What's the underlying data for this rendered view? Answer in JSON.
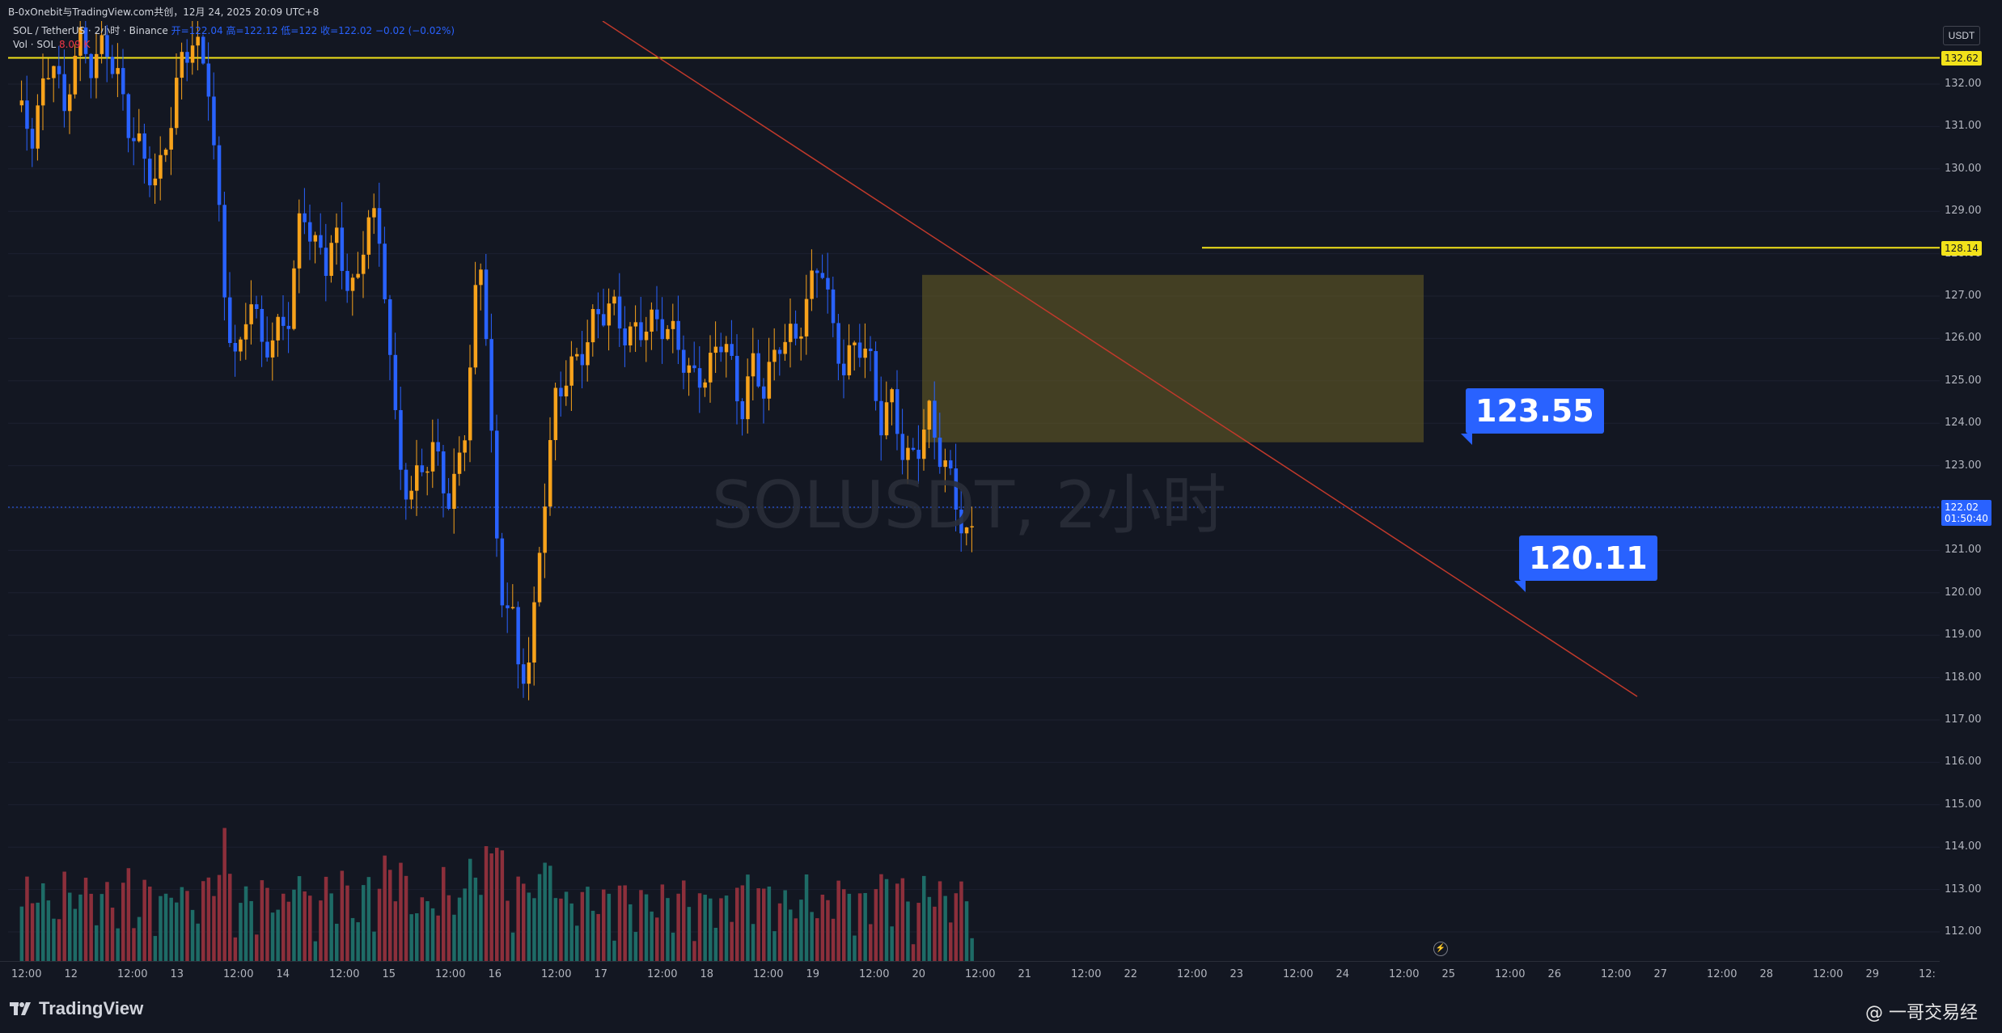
{
  "header": {
    "share_text": "B-0xOnebit与TradingView.com共创，12月 24, 2025 20:09 UTC+8"
  },
  "legend": {
    "symbol": "SOL / TetherUS · 2小时 · Binance",
    "ohlc": "开=122.04 高=122.12 低=122 收=122.02 −0.02 (−0.02%)",
    "vol_label": "Vol · SOL",
    "vol_value": "8.09 K"
  },
  "watermark": "SOLUSDT, 2小时",
  "currency_button": "USDT",
  "price_axis": [
    "132.00",
    "131.00",
    "130.00",
    "129.00",
    "128.00",
    "127.00",
    "126.00",
    "125.00",
    "124.00",
    "123.00",
    "122.00",
    "121.00",
    "120.00",
    "119.00",
    "118.00",
    "117.00",
    "116.00",
    "115.00",
    "114.00",
    "113.00",
    "112.00"
  ],
  "price_tags": {
    "upper_line": "132.62",
    "mid_line": "128.14",
    "current": "122.02",
    "countdown": "01:50:40"
  },
  "callouts": {
    "upper": "123.55",
    "lower": "120.11"
  },
  "time_axis": [
    "12:00",
    "12",
    "12:00",
    "13",
    "12:00",
    "14",
    "12:00",
    "15",
    "12:00",
    "16",
    "12:00",
    "17",
    "12:00",
    "18",
    "12:00",
    "19",
    "12:00",
    "20",
    "12:00",
    "21",
    "12:00",
    "22",
    "12:00",
    "23",
    "12:00",
    "24",
    "12:00",
    "25",
    "12:00",
    "26",
    "12:00",
    "27",
    "12:00",
    "28",
    "12:00",
    "29",
    "12:"
  ],
  "footer": {
    "brand": "TradingView",
    "credit": "@ 一哥交易经"
  },
  "colors": {
    "bull": "#f7a21b",
    "bear": "#2962ff",
    "vol_bull": "#1e6b66",
    "vol_bear": "#8c2f3b",
    "hline": "#f2e21a",
    "trendline": "#c0392b",
    "zone": "#6b6124"
  },
  "chart_data": {
    "type": "candlestick",
    "symbol": "SOL / TetherUS",
    "interval": "2小时",
    "exchange": "Binance",
    "ylim": [
      111.5,
      133.2
    ],
    "horizontal_lines": [
      132.62,
      128.14
    ],
    "zone": {
      "top": 127.5,
      "bottom": 123.55
    },
    "annotations": [
      123.55,
      120.11
    ],
    "current_price": 122.02
  }
}
